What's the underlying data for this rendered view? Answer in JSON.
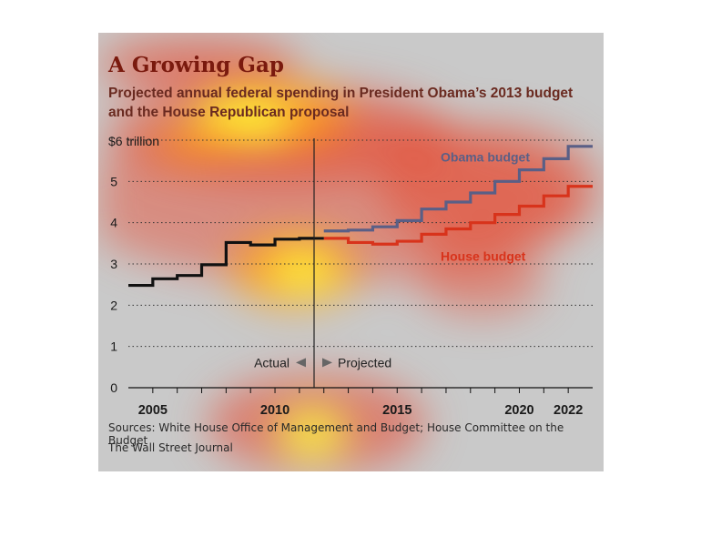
{
  "chart_data": {
    "type": "line",
    "title": "A Growing Gap",
    "subtitle": "Projected annual federal spending in President Obama’s 2013 budget and the House Republican proposal",
    "y_unit_label": "$6 trillion",
    "yticks": [
      0,
      1,
      2,
      3,
      4,
      5
    ],
    "ylim": [
      0,
      6
    ],
    "xlim": [
      2004,
      2023
    ],
    "xticks": [
      "2005",
      "2010",
      "2015",
      "2020",
      "2022"
    ],
    "grid": "horizontal dotted",
    "divider_year": 2011.6,
    "annotation_left": "Actual",
    "annotation_right": "Projected",
    "series": [
      {
        "name": "Obama budget",
        "color": "#5a5f86",
        "x": [
          2012,
          2013,
          2014,
          2015,
          2016,
          2017,
          2018,
          2019,
          2020,
          2021,
          2022
        ],
        "values": [
          3.8,
          3.82,
          3.9,
          4.05,
          4.33,
          4.5,
          4.72,
          5.0,
          5.28,
          5.55,
          5.85
        ]
      },
      {
        "name": "House budget",
        "color": "#d8331b",
        "x": [
          2012,
          2013,
          2014,
          2015,
          2016,
          2017,
          2018,
          2019,
          2020,
          2021,
          2022
        ],
        "values": [
          3.62,
          3.52,
          3.48,
          3.55,
          3.72,
          3.85,
          4.0,
          4.2,
          4.4,
          4.65,
          4.88
        ]
      },
      {
        "name": "",
        "color": "#111111",
        "x": [
          2004,
          2005,
          2006,
          2007,
          2008,
          2009,
          2010,
          2011
        ],
        "values": [
          2.48,
          2.64,
          2.72,
          2.98,
          3.52,
          3.46,
          3.6,
          3.62
        ]
      }
    ]
  },
  "sources": "Sources: White House Office of Management and Budget; House Committee on the Budget",
  "publisher": "The Wall Street Journal",
  "heatmap": {
    "colors": {
      "hot": "#ffff3a",
      "warm": "#ff9a1a",
      "cool": "#e8442a"
    }
  }
}
